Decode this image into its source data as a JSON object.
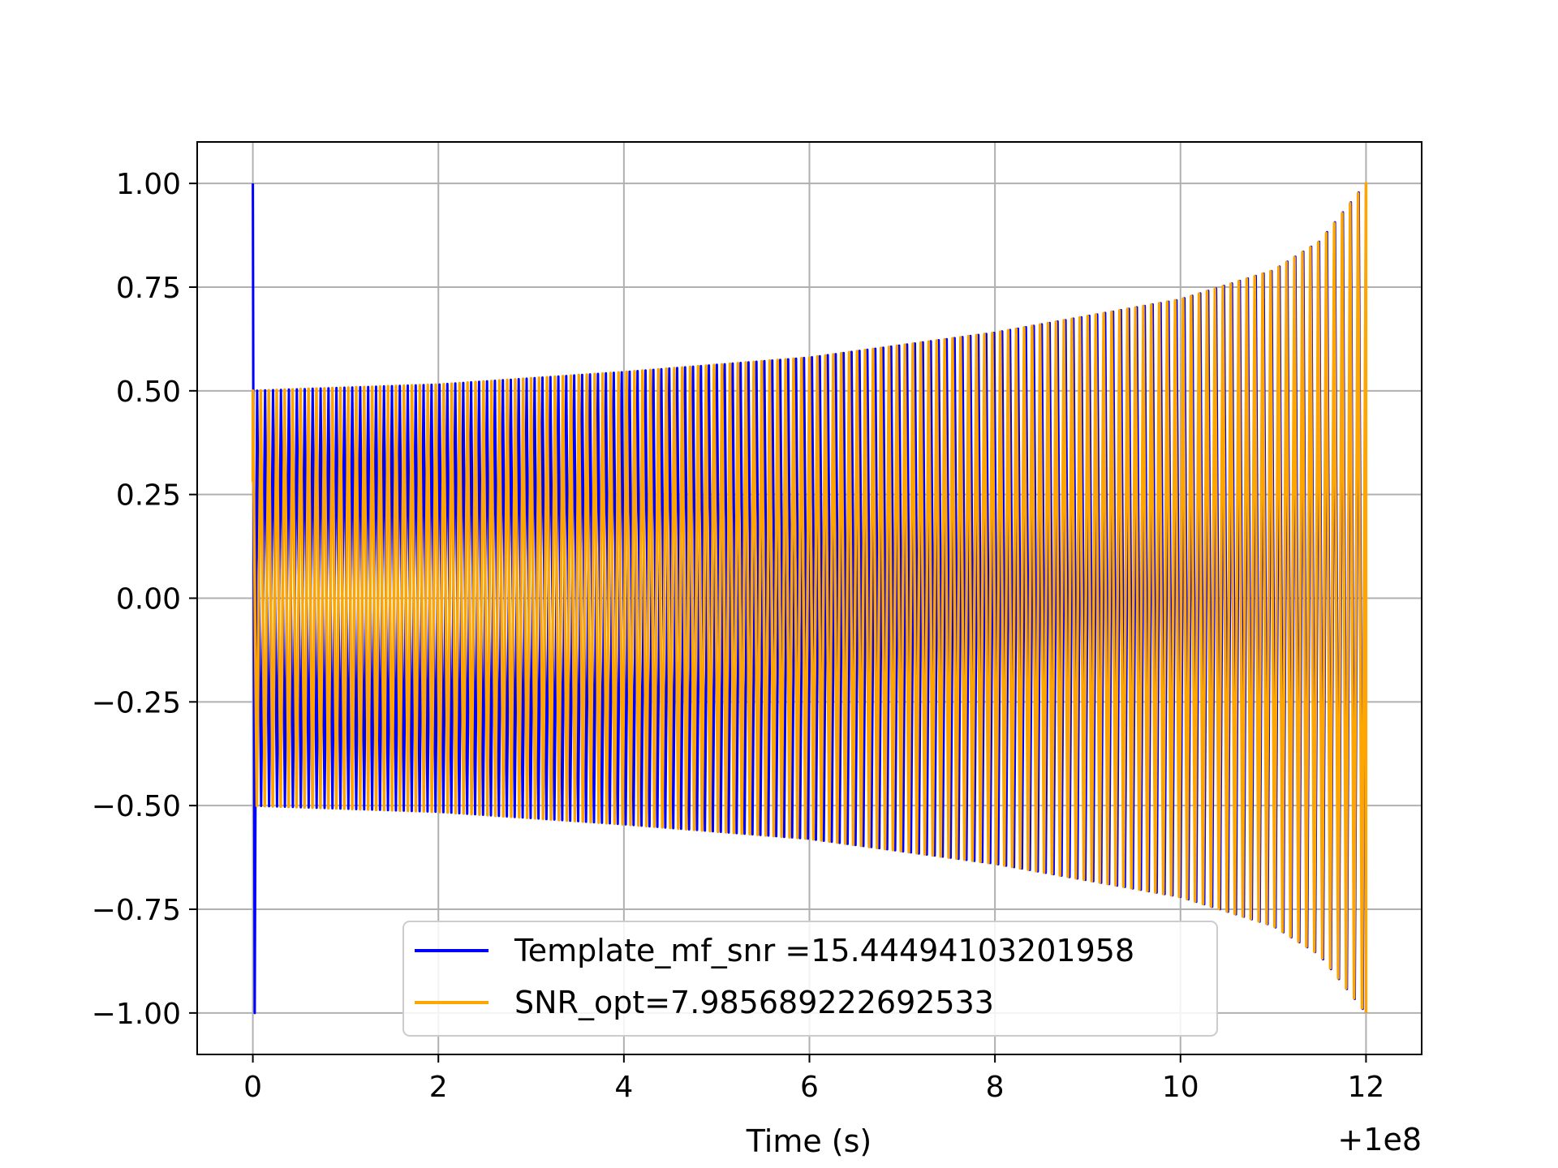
{
  "chart_data": {
    "type": "line",
    "title": "",
    "xlabel": "Time (s)",
    "ylabel": "",
    "x_offset_label": "+1e8",
    "xlim": [
      -0.6,
      12.6
    ],
    "ylim": [
      -1.1,
      1.1
    ],
    "x_ticks": [
      0,
      2,
      4,
      6,
      8,
      10,
      12
    ],
    "x_tick_labels": [
      "0",
      "2",
      "4",
      "6",
      "8",
      "10",
      "12"
    ],
    "y_ticks": [
      1.0,
      0.75,
      0.5,
      0.25,
      0.0,
      -0.25,
      -0.5,
      -0.75,
      -1.0
    ],
    "y_tick_labels": [
      "1.00",
      "0.75",
      "0.50",
      "0.25",
      "0.00",
      "−0.25",
      "−0.50",
      "−0.75",
      "−1.00"
    ],
    "grid": true,
    "legend_placement": "lower-center",
    "series": [
      {
        "name": "Template_mf_snr =15.44494103201958",
        "color": "#0000ff",
        "description_values": {
          "x_start": 0.0,
          "x_end": 12.0,
          "initial_spike": [
            1.0,
            -1.0
          ],
          "envelope_at_x": [
            [
              0,
              0.5
            ],
            [
              2,
              0.515
            ],
            [
              4,
              0.545
            ],
            [
              6,
              0.58
            ],
            [
              8,
              0.64
            ],
            [
              10,
              0.72
            ],
            [
              11,
              0.79
            ],
            [
              11.5,
              0.86
            ],
            [
              12,
              1.0
            ]
          ],
          "cycles": 140
        }
      },
      {
        "name": "SNR_opt=7.985689222692533",
        "color": "#ffa500",
        "description_values": {
          "x_start": 0.0,
          "x_end": 12.0,
          "start_value": 0.28,
          "envelope_at_x": [
            [
              0,
              0.5
            ],
            [
              2,
              0.515
            ],
            [
              4,
              0.545
            ],
            [
              6,
              0.58
            ],
            [
              8,
              0.64
            ],
            [
              10,
              0.72
            ],
            [
              11,
              0.79
            ],
            [
              11.5,
              0.86
            ],
            [
              12,
              1.0
            ]
          ],
          "cycles": 140
        }
      }
    ]
  }
}
